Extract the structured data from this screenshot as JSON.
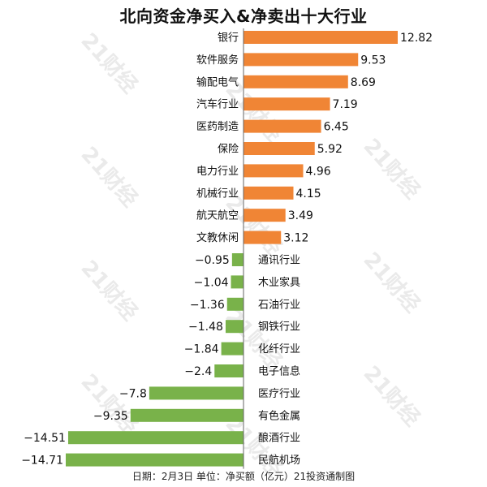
{
  "title": "北向资金净买入&净卖出十大行业",
  "footer": "日期：2月3日 单位：净买额（亿元）21投资通制图",
  "watermark": "21财经",
  "colors": {
    "positive": "#F08535",
    "negative": "#79B24A",
    "axis": "#666666",
    "text": "#111111"
  },
  "chart_data": {
    "type": "bar",
    "orientation": "horizontal",
    "title": "北向资金净买入&净卖出十大行业",
    "unit": "净买额（亿元）",
    "categories": [
      "银行",
      "软件服务",
      "输配电气",
      "汽车行业",
      "医药制造",
      "保险",
      "电力行业",
      "机械行业",
      "航天航空",
      "文教休闲",
      "通讯行业",
      "木业家具",
      "石油行业",
      "钢铁行业",
      "化纤行业",
      "电子信息",
      "医疗行业",
      "有色金属",
      "酿酒行业",
      "民航机场"
    ],
    "values": [
      12.82,
      9.53,
      8.69,
      7.19,
      6.45,
      5.92,
      4.96,
      4.15,
      3.49,
      3.12,
      -0.95,
      -1.04,
      -1.36,
      -1.48,
      -1.84,
      -2.4,
      -7.8,
      -9.35,
      -14.51,
      -14.71
    ],
    "value_labels": [
      "12.82",
      "9.53",
      "8.69",
      "7.19",
      "6.45",
      "5.92",
      "4.96",
      "4.15",
      "3.49",
      "3.12",
      "−0.95",
      "−1.04",
      "−1.36",
      "−1.48",
      "−1.84",
      "−2.4",
      "−7.8",
      "−9.35",
      "−14.51",
      "−14.71"
    ],
    "xlim": [
      -14.71,
      12.82
    ],
    "grid": false,
    "legend": "none"
  }
}
